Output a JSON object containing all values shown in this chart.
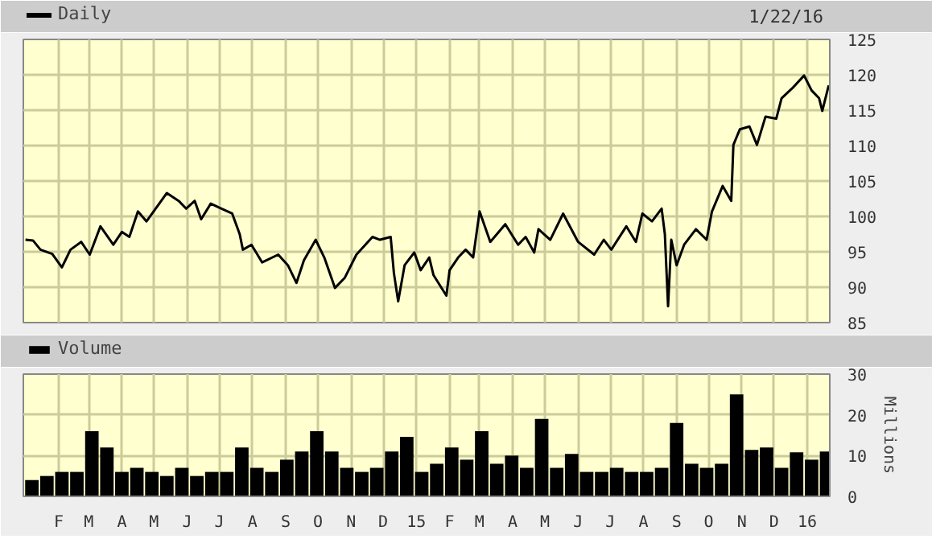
{
  "chart_data": [
    {
      "type": "line",
      "annotations": [
        "1/22/16"
      ],
      "legend": "top left",
      "grid": true,
      "tick_labels": "y",
      "line_style": "solid",
      "xlim": [
        "2013-12-30",
        "2016-01-22"
      ],
      "xticks": [
        {
          "value": "2014-02-01",
          "label": null
        },
        {
          "value": "2014-03-01",
          "label": null
        },
        {
          "value": "2014-04-01",
          "label": null
        },
        {
          "value": "2014-05-01",
          "label": null
        },
        {
          "value": "2014-06-01",
          "label": null
        },
        {
          "value": "2014-07-01",
          "label": null
        },
        {
          "value": "2014-08-01",
          "label": null
        },
        {
          "value": "2014-09-01",
          "label": null
        },
        {
          "value": "2014-10-01",
          "label": null
        },
        {
          "value": "2014-11-01",
          "label": null
        },
        {
          "value": "2014-12-01",
          "label": null
        },
        {
          "value": "2015-01-01",
          "label": null
        },
        {
          "value": "2015-02-01",
          "label": null
        },
        {
          "value": "2015-03-01",
          "label": null
        },
        {
          "value": "2015-04-01",
          "label": null
        },
        {
          "value": "2015-05-01",
          "label": null
        },
        {
          "value": "2015-06-01",
          "label": null
        },
        {
          "value": "2015-07-01",
          "label": null
        },
        {
          "value": "2015-08-01",
          "label": null
        },
        {
          "value": "2015-09-01",
          "label": null
        },
        {
          "value": "2015-10-01",
          "label": null
        },
        {
          "value": "2015-11-01",
          "label": null
        },
        {
          "value": "2015-12-01",
          "label": null
        },
        {
          "value": "2016-01-01",
          "label": null
        }
      ],
      "ylim": [
        85,
        125
      ],
      "yticks": [
        85,
        90,
        95,
        100,
        105,
        110,
        115,
        120,
        125
      ],
      "series": [
        {
          "name": "Daily",
          "color": "#000000",
          "x": [
            "2014-01-01",
            "2014-01-08",
            "2014-01-15",
            "2014-01-26",
            "2014-02-04",
            "2014-02-12",
            "2014-02-22",
            "2014-03-02",
            "2014-03-12",
            "2014-03-24",
            "2014-04-01",
            "2014-04-08",
            "2014-04-16",
            "2014-04-24",
            "2014-05-04",
            "2014-05-13",
            "2014-05-24",
            "2014-05-31",
            "2014-06-08",
            "2014-06-14",
            "2014-06-23",
            "2014-07-03",
            "2014-07-13",
            "2014-07-20",
            "2014-07-23",
            "2014-07-31",
            "2014-08-10",
            "2014-08-25",
            "2014-09-03",
            "2014-09-11",
            "2014-09-18",
            "2014-09-29",
            "2014-10-07",
            "2014-10-17",
            "2014-10-26",
            "2014-11-06",
            "2014-11-21",
            "2014-11-28",
            "2014-12-08",
            "2014-12-11",
            "2014-12-15",
            "2014-12-21",
            "2014-12-30",
            "2015-01-05",
            "2015-01-13",
            "2015-01-17",
            "2015-01-29",
            "2015-02-01",
            "2015-02-09",
            "2015-02-16",
            "2015-02-23",
            "2015-03-01",
            "2015-03-11",
            "2015-03-25",
            "2015-04-06",
            "2015-04-13",
            "2015-04-21",
            "2015-04-25",
            "2015-05-06",
            "2015-05-18",
            "2015-06-01",
            "2015-06-16",
            "2015-06-25",
            "2015-07-02",
            "2015-07-16",
            "2015-07-25",
            "2015-07-31",
            "2015-08-09",
            "2015-08-18",
            "2015-08-21",
            "2015-08-24",
            "2015-08-27",
            "2015-09-01",
            "2015-09-08",
            "2015-09-19",
            "2015-09-29",
            "2015-10-04",
            "2015-10-14",
            "2015-10-22",
            "2015-10-24",
            "2015-10-30",
            "2015-11-08",
            "2015-11-15",
            "2015-11-23",
            "2015-12-03",
            "2015-12-08",
            "2015-12-18",
            "2015-12-29",
            "2016-01-05",
            "2016-01-12",
            "2016-01-15",
            "2016-01-21"
          ],
          "values": [
            96.7,
            96.6,
            95.3,
            94.7,
            92.8,
            95.3,
            96.4,
            94.6,
            98.6,
            96.0,
            97.8,
            97.1,
            100.7,
            99.3,
            101.4,
            103.3,
            102.2,
            101.1,
            102.2,
            99.6,
            101.8,
            101.1,
            100.4,
            97.5,
            95.3,
            96.0,
            93.5,
            94.6,
            93.1,
            90.6,
            93.8,
            96.7,
            94.2,
            89.9,
            91.3,
            94.6,
            97.1,
            96.7,
            97.1,
            92.0,
            88.0,
            93.1,
            94.9,
            92.4,
            94.2,
            91.7,
            88.8,
            92.4,
            94.2,
            95.3,
            94.2,
            100.7,
            96.4,
            98.9,
            96.0,
            97.1,
            94.9,
            98.2,
            96.7,
            100.4,
            96.4,
            94.6,
            96.7,
            95.3,
            98.6,
            96.4,
            100.4,
            99.3,
            101.1,
            97.5,
            87.3,
            96.7,
            93.1,
            96.0,
            98.2,
            96.7,
            100.7,
            104.3,
            102.2,
            110.1,
            112.3,
            112.7,
            110.1,
            114.1,
            113.8,
            116.7,
            118.1,
            119.9,
            117.8,
            116.7,
            114.9,
            118.5
          ]
        }
      ]
    },
    {
      "type": "bar",
      "legend": "top left",
      "grid": true,
      "ylabel": "Millions",
      "xlim": [
        "2013-12-30",
        "2016-01-22"
      ],
      "xticks": [
        {
          "value": "2014-02-01",
          "label": "F"
        },
        {
          "value": "2014-03-01",
          "label": "M"
        },
        {
          "value": "2014-04-01",
          "label": "A"
        },
        {
          "value": "2014-05-01",
          "label": "M"
        },
        {
          "value": "2014-06-01",
          "label": "J"
        },
        {
          "value": "2014-07-01",
          "label": "J"
        },
        {
          "value": "2014-08-01",
          "label": "A"
        },
        {
          "value": "2014-09-01",
          "label": "S"
        },
        {
          "value": "2014-10-01",
          "label": "O"
        },
        {
          "value": "2014-11-01",
          "label": "N"
        },
        {
          "value": "2014-12-01",
          "label": "D"
        },
        {
          "value": "2015-01-01",
          "label": "15"
        },
        {
          "value": "2015-02-01",
          "label": "F"
        },
        {
          "value": "2015-03-01",
          "label": "M"
        },
        {
          "value": "2015-04-01",
          "label": "A"
        },
        {
          "value": "2015-05-01",
          "label": "M"
        },
        {
          "value": "2015-06-01",
          "label": "J"
        },
        {
          "value": "2015-07-01",
          "label": "J"
        },
        {
          "value": "2015-08-01",
          "label": "A"
        },
        {
          "value": "2015-09-01",
          "label": "S"
        },
        {
          "value": "2015-10-01",
          "label": "O"
        },
        {
          "value": "2015-11-01",
          "label": "N"
        },
        {
          "value": "2015-12-01",
          "label": "D"
        },
        {
          "value": "2016-01-01",
          "label": "16"
        }
      ],
      "ylim": [
        0,
        30
      ],
      "yticks": [
        0,
        10,
        20,
        30
      ],
      "series": [
        {
          "name": "Volume",
          "color": "#000000",
          "x": [
            "2014-01-07",
            "2014-01-21",
            "2014-02-04",
            "2014-02-18",
            "2014-03-04",
            "2014-03-18",
            "2014-04-01",
            "2014-04-15",
            "2014-04-29",
            "2014-05-13",
            "2014-05-27",
            "2014-06-10",
            "2014-06-24",
            "2014-07-08",
            "2014-07-22",
            "2014-08-05",
            "2014-08-19",
            "2014-09-02",
            "2014-09-16",
            "2014-09-30",
            "2014-10-14",
            "2014-10-28",
            "2014-11-11",
            "2014-11-25",
            "2014-12-09",
            "2014-12-23",
            "2015-01-06",
            "2015-01-20",
            "2015-02-03",
            "2015-02-17",
            "2015-03-03",
            "2015-03-17",
            "2015-03-31",
            "2015-04-14",
            "2015-04-28",
            "2015-05-12",
            "2015-05-26",
            "2015-06-09",
            "2015-06-23",
            "2015-07-07",
            "2015-07-21",
            "2015-08-04",
            "2015-08-18",
            "2015-09-01",
            "2015-09-15",
            "2015-09-29",
            "2015-10-13",
            "2015-10-27",
            "2015-11-10",
            "2015-11-24",
            "2015-12-08",
            "2015-12-22",
            "2016-01-05",
            "2016-01-19"
          ],
          "values": [
            4,
            5,
            6,
            6,
            16,
            12,
            6,
            7,
            6,
            5,
            7,
            5,
            6,
            6,
            12,
            7,
            6,
            9,
            11,
            16,
            11,
            7,
            6,
            7,
            11,
            14.6,
            6,
            8,
            12,
            9,
            16,
            8,
            10,
            7,
            19,
            7,
            10.4,
            6,
            6,
            7,
            6,
            6,
            7,
            18,
            8,
            7,
            8,
            25,
            11.4,
            12,
            7,
            10.8,
            9,
            11
          ]
        }
      ]
    }
  ]
}
